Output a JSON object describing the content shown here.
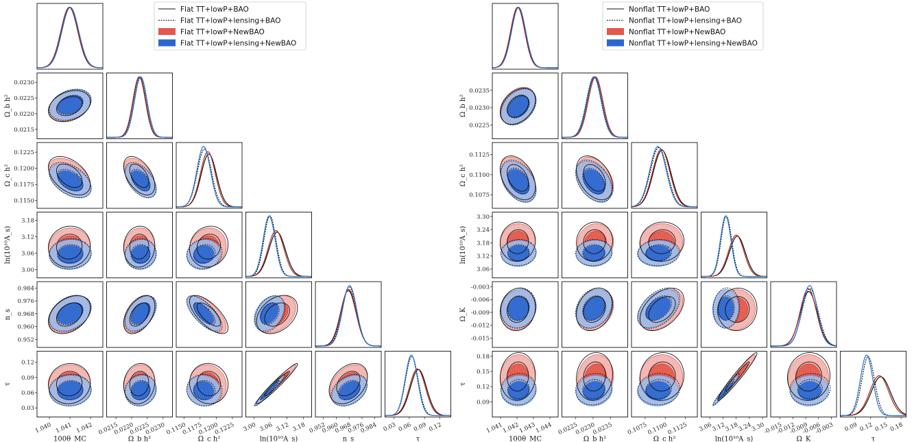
{
  "colors": {
    "red_fill_outer": "#f2b2ad",
    "red_fill_inner": "#e4574b",
    "blue_fill_outer": "#9fb8e6",
    "blue_fill_inner": "#2b66cf",
    "red_line": "#b0261c",
    "blue_line": "#1f74d6",
    "black_line": "#111111"
  },
  "chart_data": [
    {
      "type": "triangle-corner",
      "panel": "left",
      "parameters": [
        "100θ_MC",
        "Ω_b h²",
        "Ω_c h²",
        "ln(10¹⁰A_s)",
        "n_s",
        "τ"
      ],
      "xlabels": [
        "100θ_MC",
        "Ω_b h²",
        "Ω_c h²",
        "ln(10¹⁰A_s)",
        "n_s",
        "τ"
      ],
      "ylabels": [
        "",
        "Ω_b h²",
        "Ω_c h²",
        "ln(10¹⁰A_s)",
        "n_s",
        "τ"
      ],
      "ranges": [
        [
          1.0394,
          1.0426
        ],
        [
          0.0212,
          0.0233
        ],
        [
          0.1138,
          0.124
        ],
        [
          2.97,
          3.21
        ],
        [
          0.947,
          0.988
        ],
        [
          0.012,
          0.142
        ]
      ],
      "xticks": [
        [
          "1.040",
          "1.041",
          "1.042"
        ],
        [
          "0.0215",
          "0.0220",
          "0.0225",
          "0.0230"
        ],
        [
          "0.1150",
          "0.1175",
          "0.1200",
          "0.1225"
        ],
        [
          "3.00",
          "3.06",
          "3.12",
          "3.18"
        ],
        [
          "0.952",
          "0.960",
          "0.968",
          "0.976",
          "0.984"
        ],
        [
          "0.03",
          "0.06",
          "0.09",
          "0.12"
        ]
      ],
      "yticks": [
        [],
        [
          "0.0215",
          "0.0220",
          "0.0225",
          "0.0230"
        ],
        [
          "0.1150",
          "0.1175",
          "0.1200",
          "0.1225"
        ],
        [
          "3.00",
          "3.06",
          "3.12",
          "3.18"
        ],
        [
          "0.952",
          "0.960",
          "0.968",
          "0.976",
          "0.984"
        ],
        [
          "0.03",
          "0.06",
          "0.09",
          "0.12"
        ]
      ],
      "series": [
        {
          "name": "Flat TT+lowP+BAO",
          "style": "solid-line",
          "means": [
            1.04097,
            0.02224,
            0.11885,
            3.084,
            0.9675,
            0.078
          ],
          "sigmas": [
            0.00041,
            0.0002,
            0.0012,
            0.03,
            0.0048,
            0.016
          ]
        },
        {
          "name": "Flat TT+lowP+lensing+BAO",
          "style": "dashed-line",
          "means": [
            1.04101,
            0.02228,
            0.11817,
            3.058,
            0.968,
            0.065
          ],
          "sigmas": [
            0.00041,
            0.0002,
            0.0011,
            0.022,
            0.0045,
            0.0125
          ]
        },
        {
          "name": "Flat TT+lowP+NewBAO",
          "style": "red-filled",
          "means": [
            1.04098,
            0.02225,
            0.1187,
            3.08,
            0.9677,
            0.076
          ],
          "sigmas": [
            0.00041,
            0.0002,
            0.00115,
            0.029,
            0.0047,
            0.0158
          ]
        },
        {
          "name": "Flat TT+lowP+lensing+NewBAO",
          "style": "blue-filled",
          "means": [
            1.04102,
            0.02229,
            0.11805,
            3.055,
            0.9683,
            0.064
          ],
          "sigmas": [
            0.00041,
            0.0002,
            0.00105,
            0.022,
            0.0044,
            0.0122
          ]
        }
      ],
      "correlations": [
        [
          1,
          0.3,
          -0.45,
          0.05,
          0.35,
          0.05
        ],
        [
          0.3,
          1,
          -0.5,
          0.05,
          0.45,
          0.1
        ],
        [
          -0.45,
          -0.5,
          1,
          0.1,
          -0.7,
          -0.05
        ],
        [
          0.05,
          0.05,
          0.1,
          1,
          0.35,
          0.97
        ],
        [
          0.35,
          0.45,
          -0.7,
          0.35,
          1,
          0.35
        ],
        [
          0.05,
          0.1,
          -0.05,
          0.97,
          0.35,
          1
        ]
      ]
    },
    {
      "type": "triangle-corner",
      "panel": "right",
      "parameters": [
        "100θ_MC",
        "Ω_b h²",
        "Ω_c h²",
        "ln(10¹⁰A_s)",
        "Ω_K",
        "τ"
      ],
      "xlabels": [
        "100θ_MC",
        "Ω_b h²",
        "Ω_c h²",
        "ln(10¹⁰A_s)",
        "Ω_K",
        "τ"
      ],
      "ylabels": [
        "",
        "Ω_b h²",
        "Ω_c h²",
        "ln(10¹⁰A_s)",
        "Ω_K",
        "τ"
      ],
      "ranges": [
        [
          1.0405,
          1.0445
        ],
        [
          0.0221,
          0.024
        ],
        [
          0.1058,
          0.114
        ],
        [
          3.02,
          3.32
        ],
        [
          -0.0172,
          -0.0018
        ],
        [
          0.06,
          0.19
        ]
      ],
      "xticks": [
        [
          "1.041",
          "1.042",
          "1.043",
          "1.044"
        ],
        [
          "0.0225",
          "0.0230",
          "0.0235"
        ],
        [
          "0.1075",
          "0.1100",
          "0.1125"
        ],
        [
          "3.06",
          "3.12",
          "3.18",
          "3.24",
          "3.30"
        ],
        [
          "-0.015",
          "-0.012",
          "-0.009",
          "-0.006",
          "-0.003"
        ],
        [
          "0.09",
          "0.12",
          "0.15",
          "0.18"
        ]
      ],
      "yticks": [
        [],
        [
          "0.0225",
          "0.0230",
          "0.0235"
        ],
        [
          "0.1075",
          "0.1100",
          "0.1125"
        ],
        [
          "3.06",
          "3.12",
          "3.18",
          "3.24",
          "3.30"
        ],
        [
          "-0.015",
          "-0.012",
          "-0.009",
          "-0.006",
          "-0.003"
        ],
        [
          "0.09",
          "0.12",
          "0.15",
          "0.18"
        ]
      ],
      "series": [
        {
          "name": "Nonflat TT+lowP+BAO",
          "style": "solid-line",
          "means": [
            1.04205,
            0.02304,
            0.1096,
            3.185,
            -0.0083,
            0.14
          ],
          "sigmas": [
            0.00043,
            0.00021,
            0.0011,
            0.036,
            0.002,
            0.019
          ]
        },
        {
          "name": "Nonflat TT+lowP+lensing+BAO",
          "style": "dashed-line",
          "means": [
            1.04209,
            0.02302,
            0.1092,
            3.135,
            -0.008,
            0.115
          ],
          "sigmas": [
            0.00043,
            0.00021,
            0.00105,
            0.024,
            0.0019,
            0.0125
          ]
        },
        {
          "name": "Nonflat TT+lowP+NewBAO",
          "style": "red-filled",
          "means": [
            1.04204,
            0.02307,
            0.1095,
            3.18,
            -0.0084,
            0.137
          ],
          "sigmas": [
            0.00043,
            0.00021,
            0.00108,
            0.035,
            0.0019,
            0.0185
          ]
        },
        {
          "name": "Nonflat TT+lowP+lensing+NewBAO",
          "style": "blue-filled",
          "means": [
            1.0421,
            0.02303,
            0.1091,
            3.132,
            -0.0081,
            0.112
          ],
          "sigmas": [
            0.00043,
            0.00021,
            0.00103,
            0.024,
            0.0018,
            0.0122
          ]
        }
      ],
      "correlations": [
        [
          1,
          0.35,
          -0.4,
          0.05,
          0.1,
          0.05
        ],
        [
          0.35,
          1,
          -0.4,
          0.05,
          0.25,
          0.1
        ],
        [
          -0.4,
          -0.4,
          1,
          0.05,
          0.45,
          0.05
        ],
        [
          0.05,
          0.05,
          0.05,
          1,
          0.05,
          0.97
        ],
        [
          0.1,
          0.25,
          0.45,
          0.05,
          1,
          0.05
        ],
        [
          0.05,
          0.1,
          0.05,
          0.97,
          0.05,
          1
        ]
      ]
    }
  ]
}
